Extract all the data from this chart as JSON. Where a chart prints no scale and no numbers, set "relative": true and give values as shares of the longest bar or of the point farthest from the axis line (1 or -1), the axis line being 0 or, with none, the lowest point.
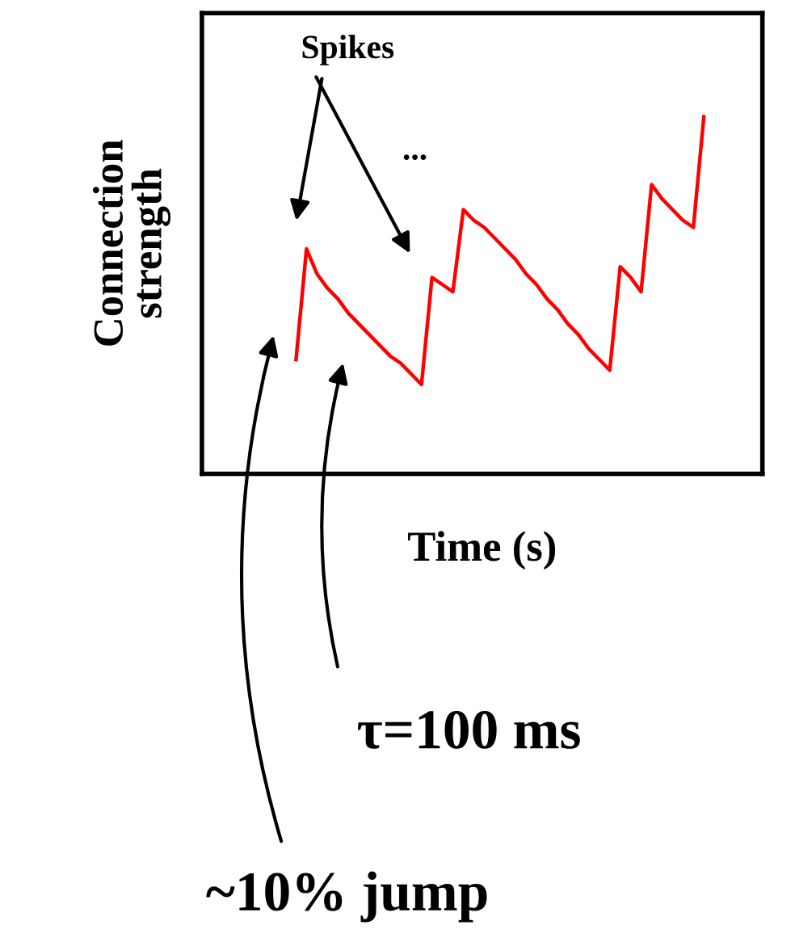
{
  "chart_data": {
    "type": "line",
    "relative": true,
    "xlabel": "Time (s)",
    "ylabel": "Connection\nstrength",
    "categories": [
      null,
      null,
      null,
      null,
      null,
      null,
      null,
      null,
      null,
      null,
      null,
      null,
      null,
      null,
      null,
      null,
      null,
      null,
      null,
      null,
      null,
      null,
      null,
      null,
      null,
      null,
      null,
      null,
      null,
      null,
      null,
      null,
      null,
      null,
      null,
      null,
      null,
      null,
      null,
      null
    ],
    "series": [
      {
        "color": "#ff0000",
        "values": [
          0.32,
          0.63,
          0.56,
          0.52,
          0.49,
          0.45,
          0.42,
          0.39,
          0.36,
          0.33,
          0.31,
          0.28,
          0.25,
          0.55,
          0.53,
          0.51,
          0.74,
          0.71,
          0.69,
          0.66,
          0.63,
          0.6,
          0.56,
          0.53,
          0.49,
          0.46,
          0.42,
          0.39,
          0.35,
          0.32,
          0.29,
          0.58,
          0.55,
          0.51,
          0.81,
          0.77,
          0.74,
          0.71,
          0.69,
          1.0
        ]
      }
    ],
    "annotations": [
      "Spikes",
      "...",
      "τ=100 ms",
      "~10% jump"
    ]
  }
}
